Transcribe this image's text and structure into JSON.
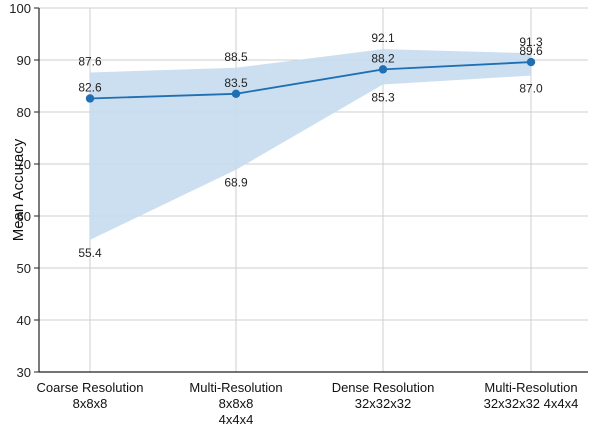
{
  "chart_data": {
    "type": "line",
    "title": "",
    "xlabel": "",
    "ylabel": "Mean Accuracy",
    "ylim": [
      30,
      100
    ],
    "yticks": [
      30,
      40,
      50,
      60,
      70,
      80,
      90,
      100
    ],
    "grid": true,
    "categories": [
      [
        "Coarse Resolution",
        "8x8x8"
      ],
      [
        "Multi-Resolution",
        "8x8x8",
        "4x4x4"
      ],
      [
        "Dense Resolution",
        "32x32x32"
      ],
      [
        "Multi-Resolution",
        "32x32x32 4x4x4"
      ]
    ],
    "series": [
      {
        "values": [
          82.6,
          83.5,
          88.2,
          89.6
        ],
        "upper": [
          87.6,
          88.5,
          92.1,
          91.3
        ],
        "lower": [
          55.4,
          68.9,
          85.3,
          87.0
        ],
        "value_labels": [
          "82.6",
          "83.5",
          "88.2",
          "89.6"
        ],
        "upper_labels": [
          "87.6",
          "88.5",
          "92.1",
          "91.3"
        ],
        "lower_labels": [
          "55.4",
          "68.9",
          "85.3",
          "87.0"
        ]
      }
    ],
    "colors": {
      "line": "#1f6fb2",
      "band": "#c6dcee",
      "grid": "#cfcfcf",
      "axis": "#222222"
    }
  }
}
